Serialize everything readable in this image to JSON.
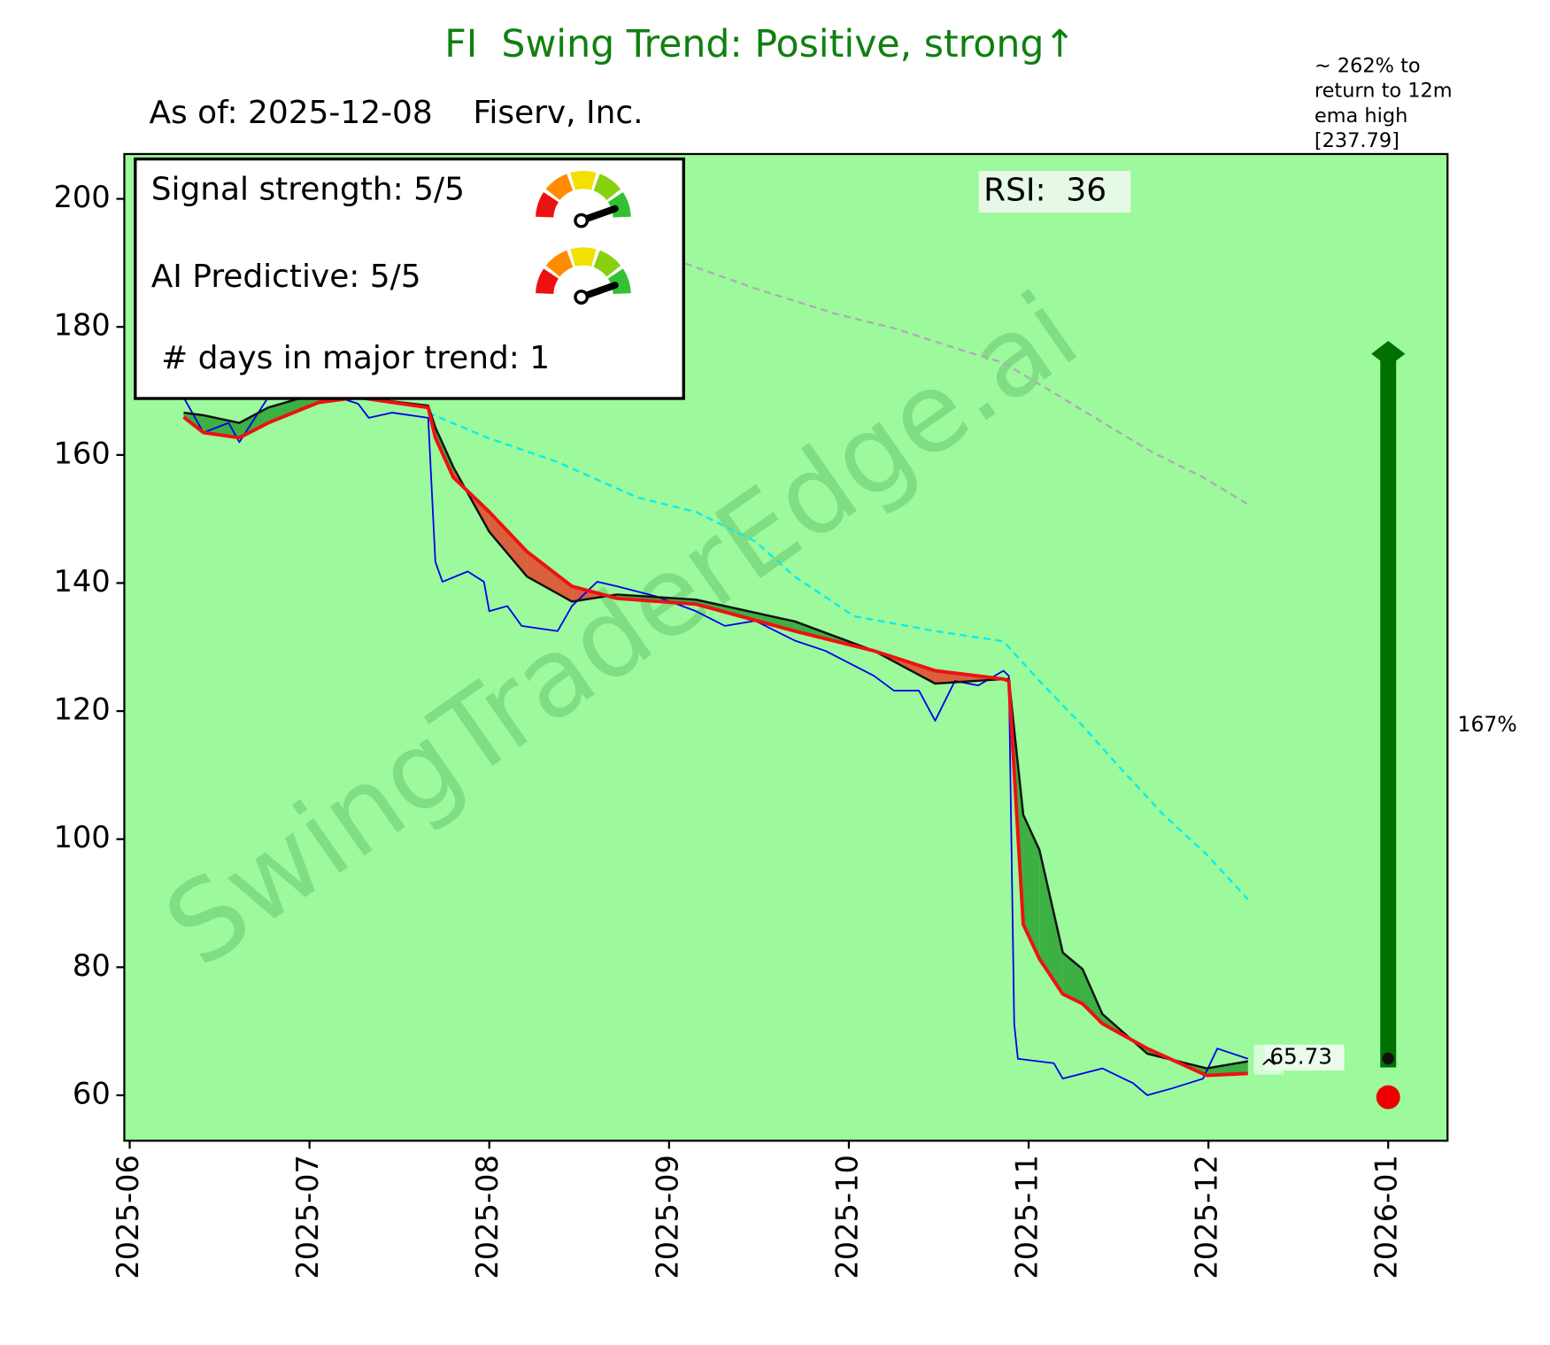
{
  "chart_data": {
    "type": "line",
    "title": "FI  Swing Trend: Positive, strong↑",
    "subtitle": "As of: 2025-12-08    Fiserv, Inc.",
    "watermark": "SwingTraderEdge.ai",
    "xlim": [
      -0.03,
      7.33
    ],
    "ylim": [
      52.9,
      207
    ],
    "xticks": [
      {
        "value": 0,
        "label": "2025-06"
      },
      {
        "value": 1,
        "label": "2025-07"
      },
      {
        "value": 2,
        "label": "2025-08"
      },
      {
        "value": 3,
        "label": "2025-09"
      },
      {
        "value": 4,
        "label": "2025-10"
      },
      {
        "value": 5,
        "label": "2025-11"
      },
      {
        "value": 6,
        "label": "2025-12"
      },
      {
        "value": 7,
        "label": "2026-01"
      }
    ],
    "yticks": [
      60,
      80,
      100,
      120,
      140,
      160,
      180,
      200
    ],
    "background": "#9cf99c",
    "series": [
      {
        "color": "#0000ee",
        "width": 1.6,
        "dash": false,
        "x": [
          0.3,
          0.41,
          0.55,
          0.61,
          0.77,
          0.94,
          1.27,
          1.33,
          1.46,
          1.66,
          1.7,
          1.74,
          1.88,
          1.97,
          2.0,
          2.1,
          2.18,
          2.38,
          2.46,
          2.6,
          2.71,
          2.93,
          3.15,
          3.31,
          3.48,
          3.7,
          3.87,
          4.03,
          4.14,
          4.25,
          4.39,
          4.48,
          4.59,
          4.72,
          4.86,
          4.89,
          4.92,
          4.94,
          5.14,
          5.19,
          5.3,
          5.41,
          5.58,
          5.66,
          5.8,
          5.97,
          6.05,
          6.22
        ],
        "values": [
          169,
          163.5,
          165,
          162,
          169,
          171,
          168,
          165.8,
          166.6,
          165.8,
          143.3,
          140.2,
          141.8,
          140.2,
          135.6,
          136.4,
          133.3,
          132.5,
          136.4,
          140.2,
          139.5,
          137.9,
          135.6,
          133.3,
          134.1,
          131,
          129.4,
          127.1,
          125.5,
          123.2,
          123.2,
          118.5,
          124.7,
          124,
          126.3,
          125.5,
          71.2,
          65.7,
          65,
          62.6,
          63.4,
          64.2,
          61.9,
          60,
          61.1,
          62.6,
          67.3,
          65.7
        ]
      },
      {
        "color": "#111111",
        "width": 2.2,
        "dash": false,
        "x": [
          0.3,
          0.41,
          0.61,
          0.77,
          1.05,
          1.27,
          1.66,
          1.7,
          1.8,
          2.0,
          2.21,
          2.46,
          2.71,
          3.15,
          3.7,
          4.14,
          4.48,
          4.86,
          4.89,
          4.97,
          5.06,
          5.19,
          5.3,
          5.41,
          5.66,
          5.99,
          6.22
        ],
        "values": [
          166.6,
          166.2,
          165,
          167.4,
          169.7,
          169,
          167.7,
          164.3,
          158.1,
          148,
          141,
          137.1,
          138.2,
          137.4,
          134,
          129.4,
          124.3,
          125,
          125,
          103.8,
          98.3,
          82.3,
          79.7,
          72.7,
          66.5,
          64.2,
          65.3
        ]
      },
      {
        "color": "#ee1111",
        "width": 3.5,
        "dash": false,
        "x": [
          0.3,
          0.41,
          0.61,
          0.77,
          1.05,
          1.27,
          1.66,
          1.7,
          1.8,
          2.0,
          2.21,
          2.46,
          2.71,
          3.15,
          3.7,
          4.14,
          4.48,
          4.86,
          4.89,
          4.97,
          5.06,
          5.19,
          5.3,
          5.41,
          5.66,
          5.99,
          6.22
        ],
        "values": [
          165.9,
          163.5,
          162.7,
          165,
          168.2,
          169,
          167.4,
          162.7,
          156.5,
          151.1,
          144.9,
          139.5,
          137.6,
          136.7,
          132.5,
          129.4,
          126.3,
          125,
          124.7,
          86.7,
          81.3,
          75.8,
          74.3,
          71.2,
          67.3,
          63.1,
          63.4
        ]
      },
      {
        "color": "#00eeee",
        "width": 2,
        "dash": true,
        "x": [
          1.66,
          1.99,
          2.38,
          2.82,
          3.15,
          3.48,
          3.7,
          4.03,
          4.48,
          4.86,
          5.06,
          5.3,
          5.52,
          5.75,
          5.99,
          6.22
        ],
        "values": [
          166.6,
          162.7,
          158.9,
          153.4,
          151.1,
          146.5,
          141,
          134.8,
          132.5,
          130.9,
          124.7,
          117.7,
          110.8,
          103.8,
          97.6,
          90.6
        ]
      },
      {
        "color": "#b0a8b8",
        "width": 2,
        "dash": true,
        "x": [
          3.09,
          3.48,
          3.92,
          4.25,
          4.59,
          4.86,
          5.14,
          5.41,
          5.69,
          5.97,
          6.22
        ],
        "values": [
          189.9,
          186,
          182.1,
          179.8,
          176.7,
          174.4,
          169.7,
          165.1,
          160.4,
          156.5,
          152.3
        ]
      }
    ],
    "target": {
      "x": 7,
      "low": 59.7,
      "high": 175.8,
      "label": "167%",
      "color": "#007000"
    },
    "last_price": 65.73,
    "last_marker": "^",
    "rsi_label": "RSI:  36",
    "legend": [
      "Signal strength: 5/5",
      "AI Predictive: 5/5",
      " # days in major trend: 1"
    ],
    "note": [
      "~ 262% to",
      "return to 12m",
      "ema high",
      "[237.79]"
    ]
  }
}
